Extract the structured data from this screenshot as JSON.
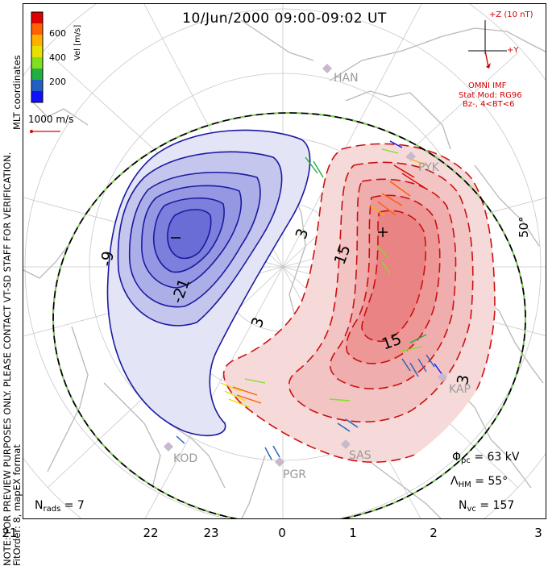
{
  "title": "10/Jun/2000 09:00-09:02 UT",
  "side_note": {
    "line1": "NOTE: FOR PREVIEW PURPOSES ONLY. PLEASE CONTACT VT-SD STAFF FOR VERIFICATION.",
    "line2": "FitOrder: 8, mapEX format",
    "coords": "MLT coordinates"
  },
  "colorbar": {
    "label": "Vel [m/s]",
    "ticks": [
      "600",
      "400",
      "200"
    ],
    "colors": [
      "#e00000",
      "#ff6000",
      "#ffb000",
      "#e8e000",
      "#80e020",
      "#20b040",
      "#2060c0",
      "#1010ff"
    ]
  },
  "vector_scale": "1000 m/s",
  "imf": {
    "z_label": "+Z (10 nT)",
    "y_label": "+Y",
    "source": "OMNI IMF",
    "model_line1": "Stat Mod: RG96",
    "model_line2": "Bz-, 4<BT<6"
  },
  "latitude_label": "50°",
  "mlt_labels": [
    "21",
    "22",
    "23",
    "0",
    "1",
    "2",
    "3"
  ],
  "stations": [
    "HAN",
    "PYK",
    "KAP",
    "SAS",
    "PGR",
    "KOD"
  ],
  "contour_labels": {
    "dusk": [
      "-9",
      "-21"
    ],
    "dawn": [
      "3",
      "3",
      "15",
      "15",
      "3"
    ],
    "min_marker": "–",
    "max_marker": "+"
  },
  "stats": {
    "phi_symbol": "Φ",
    "phi_sub": "pc",
    "phi_value": "= 63 kV",
    "lambda_symbol": "Λ",
    "lambda_sub": "HM",
    "lambda_value": "= 55°",
    "nvc_symbol": "N",
    "nvc_sub": "vc",
    "nvc_value": "= 157",
    "nrads_symbol": "N",
    "nrads_sub": "rads",
    "nrads_value": "= 7"
  },
  "colors": {
    "dusk_cell": "#1a1aa0",
    "dawn_cell": "#cc1010",
    "boundary": "#000000",
    "boundary_dash": "#7cd64a",
    "land": "#b8b8b8",
    "imf_vector": "#d00000"
  }
}
